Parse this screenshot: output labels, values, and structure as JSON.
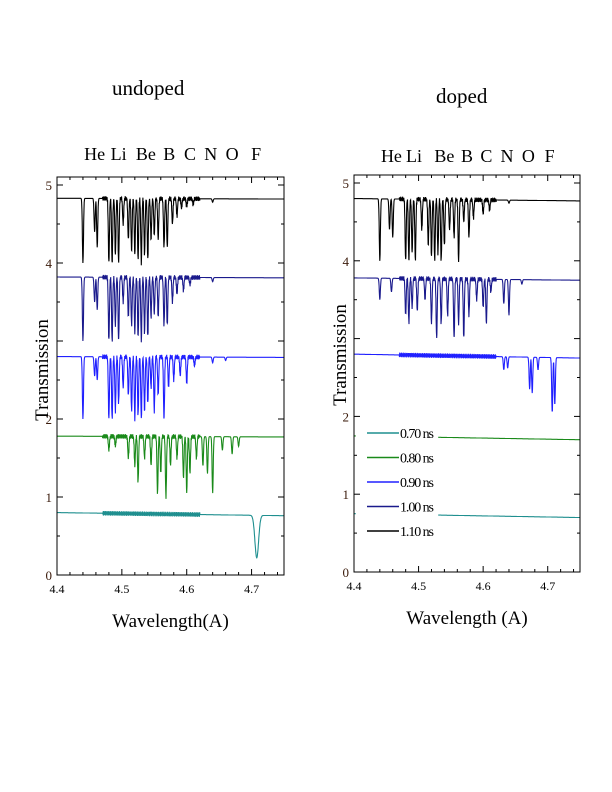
{
  "chart_data": [
    {
      "type": "line",
      "title": "undoped",
      "element_labels": [
        "He",
        "Li",
        "Be",
        "B",
        "C",
        "N",
        "O",
        "F"
      ],
      "element_positions": [
        4.458,
        4.495,
        4.537,
        4.573,
        4.605,
        4.637,
        4.67,
        4.707
      ],
      "xlabel": "Wavelength(A)",
      "ylabel": "Transmission",
      "xlim": [
        4.4,
        4.75
      ],
      "ylim": [
        0,
        5
      ],
      "xticks": [
        4.4,
        4.5,
        4.6,
        4.7
      ],
      "xtick_labels": [
        "4.4",
        "4.5",
        "4.6",
        "4.7"
      ],
      "yticks": [
        0,
        1,
        2,
        4,
        5
      ],
      "ytick_labels": [
        "0",
        "1",
        "2",
        "4",
        "5"
      ],
      "grid": false,
      "series": [
        {
          "name": "1.10 ns",
          "color": "#000000",
          "base": [
            4.83,
            4.82
          ],
          "lines": [
            [
              4.44,
              4.0
            ],
            [
              4.458,
              4.4
            ],
            [
              4.462,
              4.2
            ],
            [
              4.48,
              4.0
            ],
            [
              4.485,
              4.0
            ],
            [
              4.49,
              4.1
            ],
            [
              4.495,
              4.0
            ],
            [
              4.502,
              4.5
            ],
            [
              4.51,
              4.3
            ],
            [
              4.515,
              4.15
            ],
            [
              4.52,
              4.1
            ],
            [
              4.525,
              4.05
            ],
            [
              4.53,
              4.0
            ],
            [
              4.535,
              4.1
            ],
            [
              4.54,
              4.05
            ],
            [
              4.545,
              4.3
            ],
            [
              4.55,
              4.35
            ],
            [
              4.556,
              4.3
            ],
            [
              4.565,
              4.2
            ],
            [
              4.57,
              4.2
            ],
            [
              4.578,
              4.5
            ],
            [
              4.585,
              4.6
            ],
            [
              4.592,
              4.7
            ],
            [
              4.6,
              4.72
            ],
            [
              4.61,
              4.75
            ],
            [
              4.64,
              4.78
            ]
          ]
        },
        {
          "name": "1.00 ns",
          "color": "#1a1a8c",
          "base": [
            3.82,
            3.81
          ],
          "lines": [
            [
              4.44,
              3.0
            ],
            [
              4.458,
              3.5
            ],
            [
              4.462,
              3.4
            ],
            [
              4.48,
              3.0
            ],
            [
              4.485,
              3.0
            ],
            [
              4.49,
              3.2
            ],
            [
              4.495,
              3.0
            ],
            [
              4.502,
              3.5
            ],
            [
              4.51,
              3.3
            ],
            [
              4.515,
              3.2
            ],
            [
              4.52,
              3.1
            ],
            [
              4.525,
              3.05
            ],
            [
              4.53,
              3.0
            ],
            [
              4.535,
              3.1
            ],
            [
              4.54,
              3.05
            ],
            [
              4.545,
              3.3
            ],
            [
              4.55,
              3.35
            ],
            [
              4.556,
              3.3
            ],
            [
              4.565,
              3.2
            ],
            [
              4.57,
              3.2
            ],
            [
              4.578,
              3.5
            ],
            [
              4.585,
              3.6
            ],
            [
              4.595,
              3.65
            ],
            [
              4.605,
              3.72
            ],
            [
              4.64,
              3.76
            ]
          ]
        },
        {
          "name": "0.90 ns",
          "color": "#2020ff",
          "base": [
            2.8,
            2.79
          ],
          "lines": [
            [
              4.44,
              2.0
            ],
            [
              4.458,
              2.55
            ],
            [
              4.462,
              2.5
            ],
            [
              4.48,
              2.0
            ],
            [
              4.485,
              2.0
            ],
            [
              4.49,
              2.1
            ],
            [
              4.495,
              2.2
            ],
            [
              4.502,
              2.4
            ],
            [
              4.51,
              2.3
            ],
            [
              4.515,
              2.1
            ],
            [
              4.52,
              2.0
            ],
            [
              4.525,
              2.05
            ],
            [
              4.53,
              2.0
            ],
            [
              4.535,
              2.1
            ],
            [
              4.54,
              2.2
            ],
            [
              4.545,
              2.4
            ],
            [
              4.55,
              2.1
            ],
            [
              4.556,
              2.3
            ],
            [
              4.565,
              2.0
            ],
            [
              4.572,
              2.4
            ],
            [
              4.58,
              2.5
            ],
            [
              4.59,
              2.55
            ],
            [
              4.6,
              2.45
            ],
            [
              4.612,
              2.68
            ],
            [
              4.64,
              2.72
            ],
            [
              4.66,
              2.75
            ]
          ]
        },
        {
          "name": "0.80 ns",
          "color": "#1a8a1a",
          "base": [
            1.78,
            1.77
          ],
          "lines": [
            [
              4.48,
              1.6
            ],
            [
              4.49,
              1.65
            ],
            [
              4.51,
              1.5
            ],
            [
              4.52,
              1.4
            ],
            [
              4.525,
              1.2
            ],
            [
              4.535,
              1.5
            ],
            [
              4.545,
              1.4
            ],
            [
              4.555,
              1.05
            ],
            [
              4.56,
              1.3
            ],
            [
              4.568,
              1.0
            ],
            [
              4.575,
              1.4
            ],
            [
              4.585,
              1.5
            ],
            [
              4.595,
              1.25
            ],
            [
              4.6,
              1.05
            ],
            [
              4.605,
              1.3
            ],
            [
              4.615,
              1.5
            ],
            [
              4.625,
              1.4
            ],
            [
              4.632,
              1.3
            ],
            [
              4.64,
              1.05
            ],
            [
              4.655,
              1.6
            ],
            [
              4.67,
              1.55
            ],
            [
              4.68,
              1.65
            ]
          ]
        },
        {
          "name": "0.70 ns",
          "color": "#1f8f8f",
          "base": [
            0.8,
            0.76
          ],
          "lines": [
            [
              4.708,
              0.22
            ]
          ],
          "wide": true
        }
      ]
    },
    {
      "type": "line",
      "title": "doped",
      "element_labels": [
        "He",
        "Li",
        "Be",
        "B",
        "C",
        "N",
        "O",
        "F"
      ],
      "element_positions": [
        4.458,
        4.493,
        4.54,
        4.575,
        4.605,
        4.637,
        4.67,
        4.703
      ],
      "xlabel": "Wavelength (A)",
      "ylabel": "Transmission",
      "xlim": [
        4.4,
        4.75
      ],
      "ylim": [
        0,
        5
      ],
      "xticks": [
        4.4,
        4.5,
        4.6,
        4.7
      ],
      "xtick_labels": [
        "4.4",
        "4.5",
        "4.6",
        "4.7"
      ],
      "yticks": [
        0,
        1,
        2,
        4,
        5
      ],
      "ytick_labels": [
        "0",
        "1",
        "2",
        "4",
        "5"
      ],
      "grid": false,
      "legend": {
        "placement": "lower-left",
        "entries": [
          "0.70 ns",
          "0.80 ns",
          "0.90 ns",
          "1.00 ns",
          "1.10 ns"
        ]
      },
      "series": [
        {
          "name": "1.10 ns",
          "color": "#000000",
          "base": [
            4.8,
            4.77
          ],
          "lines": [
            [
              4.44,
              4.0
            ],
            [
              4.455,
              4.4
            ],
            [
              4.46,
              4.3
            ],
            [
              4.48,
              4.0
            ],
            [
              4.485,
              4.0
            ],
            [
              4.49,
              4.1
            ],
            [
              4.495,
              4.0
            ],
            [
              4.505,
              4.4
            ],
            [
              4.515,
              4.2
            ],
            [
              4.52,
              4.05
            ],
            [
              4.525,
              4.0
            ],
            [
              4.53,
              4.1
            ],
            [
              4.535,
              4.0
            ],
            [
              4.54,
              4.2
            ],
            [
              4.548,
              4.4
            ],
            [
              4.555,
              4.3
            ],
            [
              4.562,
              4.0
            ],
            [
              4.57,
              4.5
            ],
            [
              4.578,
              4.3
            ],
            [
              4.585,
              4.55
            ],
            [
              4.6,
              4.6
            ],
            [
              4.61,
              4.65
            ],
            [
              4.64,
              4.74
            ]
          ]
        },
        {
          "name": "1.00 ns",
          "color": "#1a1a8c",
          "base": [
            3.78,
            3.75
          ],
          "lines": [
            [
              4.44,
              3.5
            ],
            [
              4.458,
              3.6
            ],
            [
              4.48,
              3.3
            ],
            [
              4.485,
              3.2
            ],
            [
              4.49,
              3.4
            ],
            [
              4.498,
              3.35
            ],
            [
              4.51,
              3.5
            ],
            [
              4.52,
              3.2
            ],
            [
              4.528,
              3.0
            ],
            [
              4.535,
              3.2
            ],
            [
              4.545,
              3.3
            ],
            [
              4.555,
              3.0
            ],
            [
              4.562,
              3.2
            ],
            [
              4.57,
              3.0
            ],
            [
              4.578,
              3.3
            ],
            [
              4.59,
              3.5
            ],
            [
              4.6,
              3.4
            ],
            [
              4.605,
              3.2
            ],
            [
              4.612,
              3.6
            ],
            [
              4.632,
              3.45
            ],
            [
              4.64,
              3.3
            ],
            [
              4.66,
              3.7
            ]
          ]
        },
        {
          "name": "0.90 ns",
          "color": "#2020ff",
          "base": [
            2.8,
            2.75
          ],
          "lines": [
            [
              4.632,
              2.6
            ],
            [
              4.638,
              2.62
            ],
            [
              4.672,
              2.35
            ],
            [
              4.676,
              2.3
            ],
            [
              4.685,
              2.6
            ],
            [
              4.707,
              2.05
            ],
            [
              4.711,
              2.15
            ]
          ]
        },
        {
          "name": "0.80 ns",
          "color": "#1a8a1a",
          "base": [
            1.75,
            1.7
          ],
          "lines": [],
          "gap": [
            4.403,
            4.53
          ]
        },
        {
          "name": "0.70 ns",
          "color": "#1f8f8f",
          "base": [
            0.75,
            0.7
          ],
          "lines": [],
          "gap": [
            4.403,
            4.53
          ]
        }
      ]
    }
  ]
}
